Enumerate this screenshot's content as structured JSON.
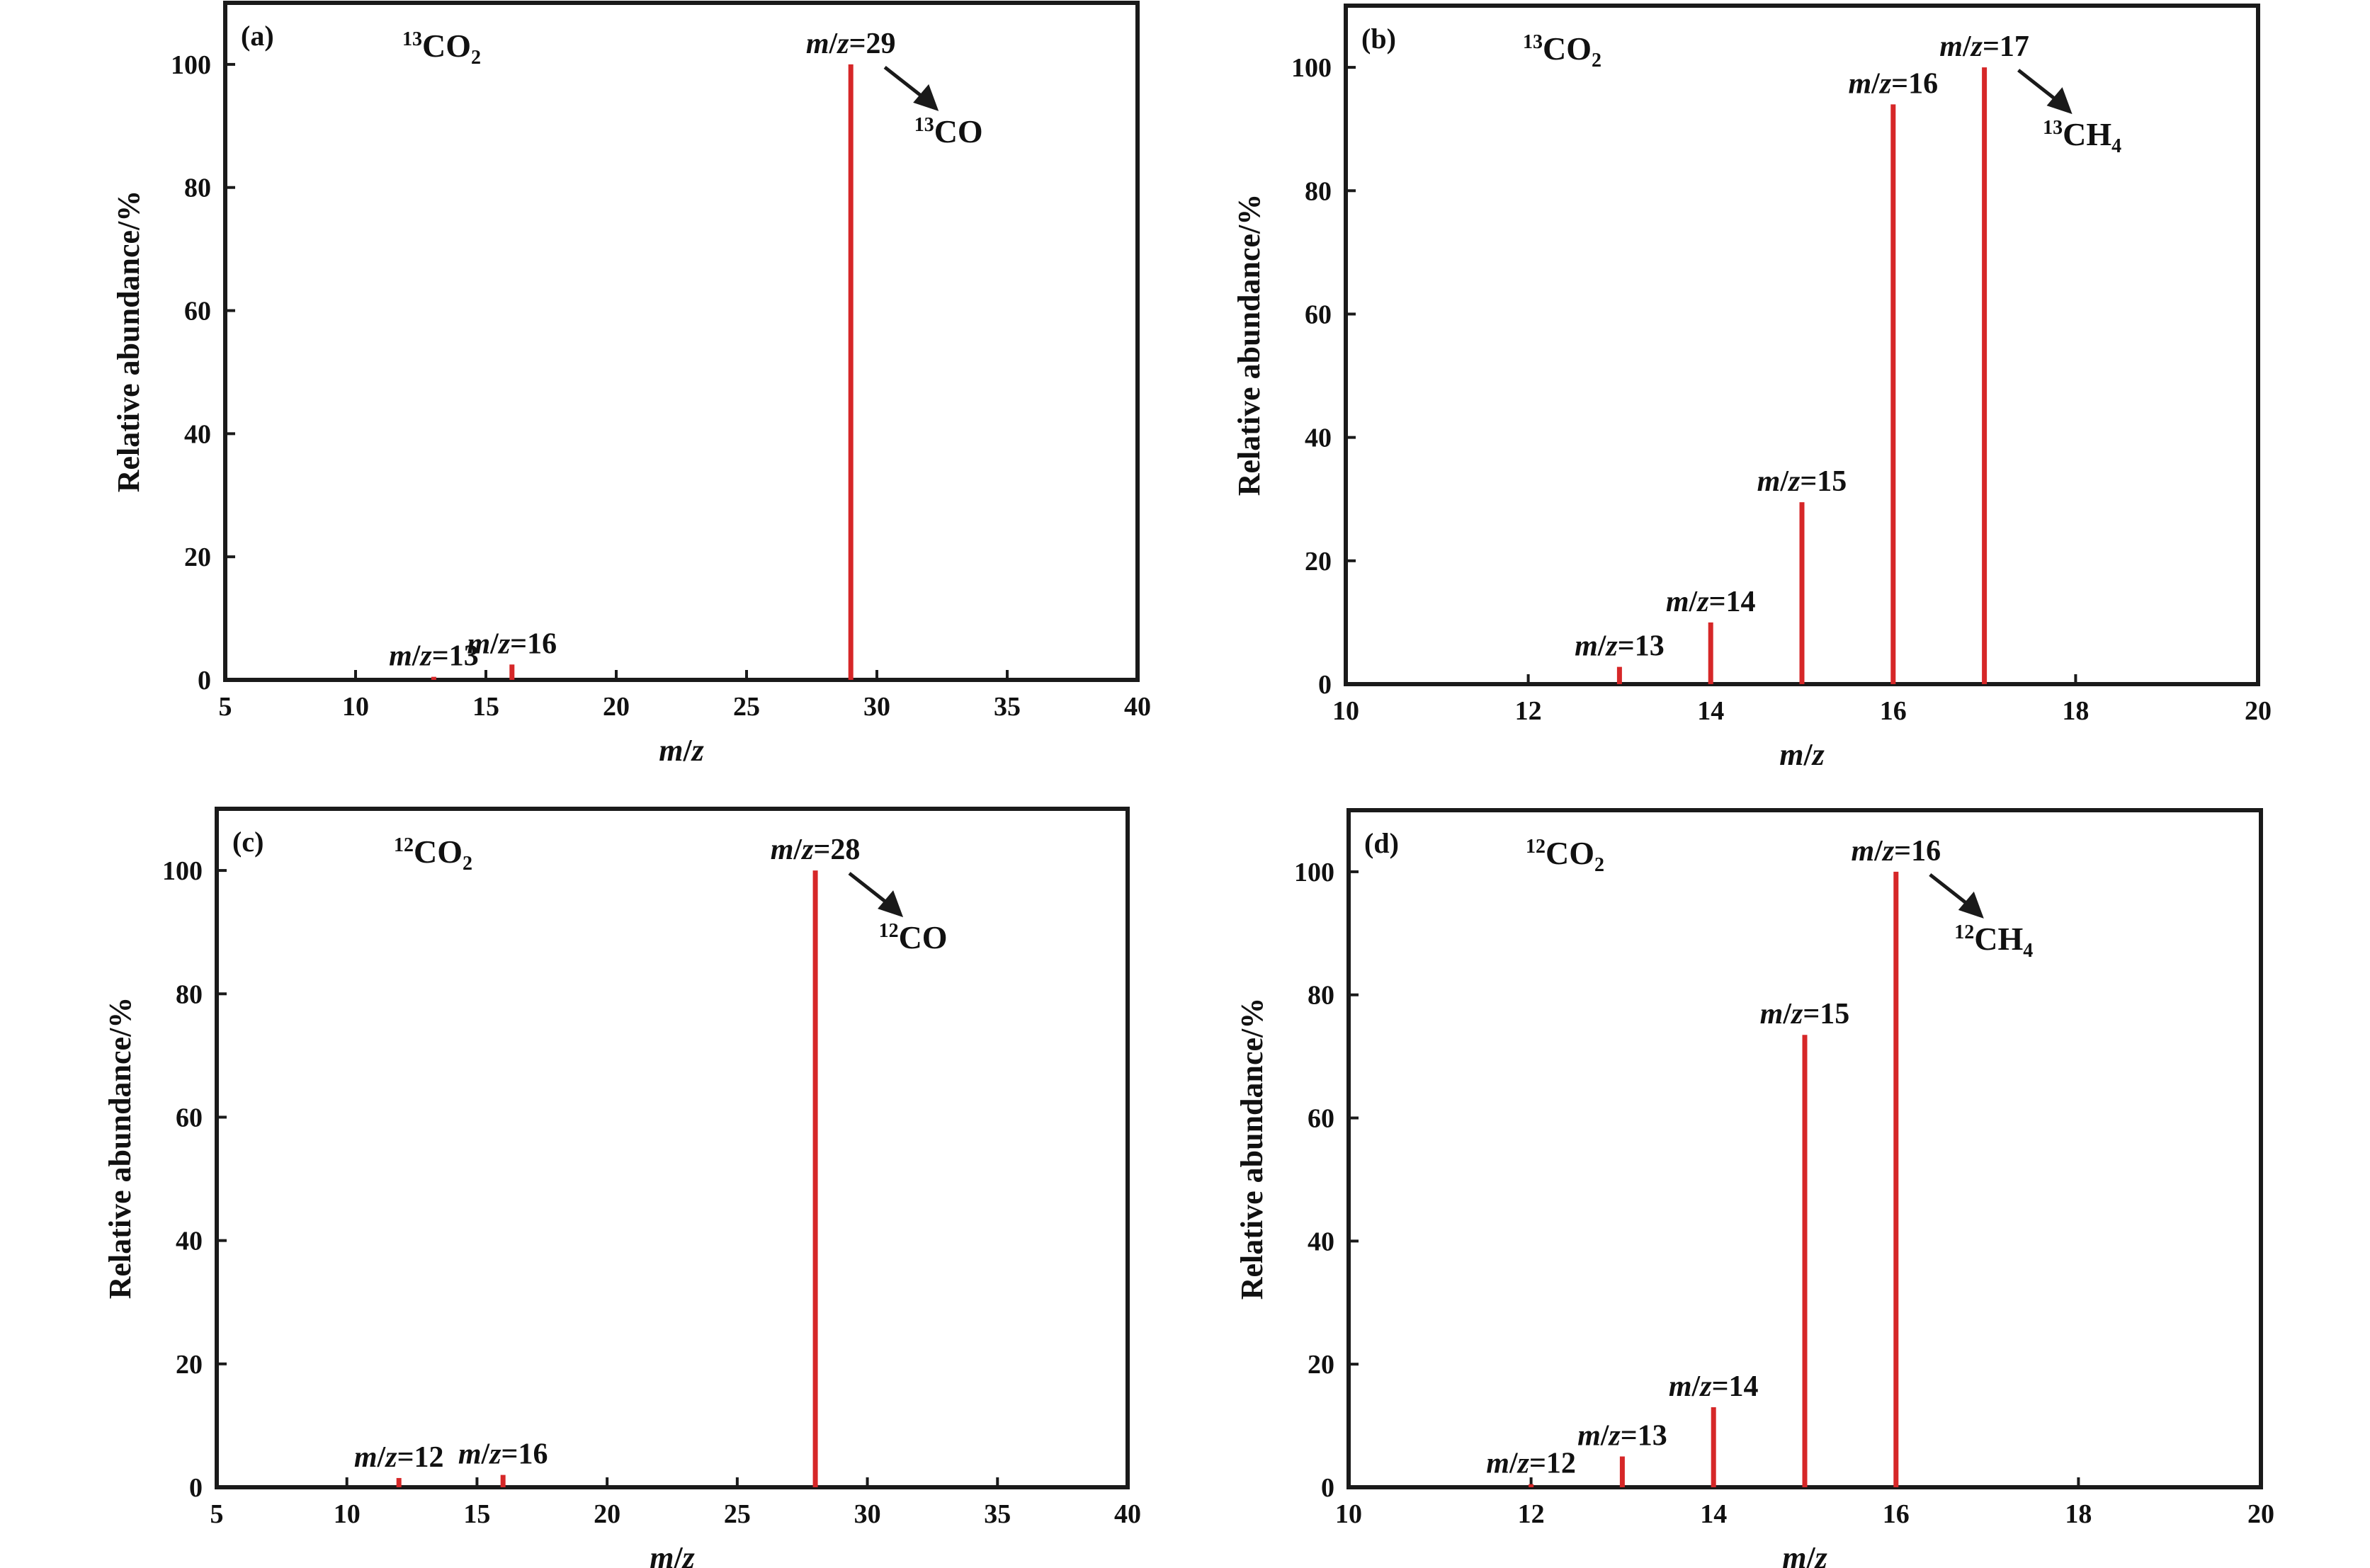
{
  "colors": {
    "stick": "#d62728",
    "axis": "#1a1a1a",
    "text": "#111111"
  },
  "chart_data": [
    {
      "type": "bar",
      "panel_label": "(a)",
      "label": {
        "sup": "13",
        "base": "CO",
        "sub": "2"
      },
      "xlabel": "m/z",
      "ylabel": "Relative abundance/%",
      "xlim": [
        5,
        40
      ],
      "ylim": [
        0,
        110
      ],
      "xticks": [
        "5",
        "10",
        "15",
        "20",
        "25",
        "30",
        "35",
        "40"
      ],
      "yticks": [
        "0",
        "20",
        "40",
        "60",
        "80",
        "100"
      ],
      "grid": false,
      "legend": "none",
      "x": [
        13,
        16,
        29
      ],
      "values": [
        0.5,
        2.5,
        100
      ],
      "annotations": [
        {
          "mz": "m/z=13",
          "x": 13,
          "y": 0.5
        },
        {
          "mz": "m/z=16",
          "x": 16,
          "y": 2.5
        },
        {
          "mz": "m/z=29",
          "x": 29,
          "y": 100,
          "product": {
            "sup": "13",
            "base": "CO",
            "sub": ""
          }
        }
      ]
    },
    {
      "type": "bar",
      "panel_label": "(b)",
      "label": {
        "sup": "13",
        "base": "CO",
        "sub": "2"
      },
      "xlabel": "m/z",
      "ylabel": "Relative abundance/%",
      "xlim": [
        10,
        20
      ],
      "ylim": [
        0,
        110
      ],
      "xticks": [
        "10",
        "12",
        "14",
        "16",
        "18",
        "20"
      ],
      "yticks": [
        "0",
        "20",
        "40",
        "60",
        "80",
        "100"
      ],
      "grid": false,
      "legend": "none",
      "x": [
        13,
        14,
        15,
        16,
        17
      ],
      "values": [
        2.8,
        10,
        29.5,
        94,
        100
      ],
      "annotations": [
        {
          "mz": "m/z=13",
          "x": 13,
          "y": 2.8
        },
        {
          "mz": "m/z=14",
          "x": 14,
          "y": 10
        },
        {
          "mz": "m/z=15",
          "x": 15,
          "y": 29.5
        },
        {
          "mz": "m/z=16",
          "x": 16,
          "y": 94
        },
        {
          "mz": "m/z=17",
          "x": 17,
          "y": 100,
          "product": {
            "sup": "13",
            "base": "CH",
            "sub": "4"
          }
        }
      ]
    },
    {
      "type": "bar",
      "panel_label": "(c)",
      "label": {
        "sup": "12",
        "base": "CO",
        "sub": "2"
      },
      "xlabel": "m/z",
      "ylabel": "Relative abundance/%",
      "xlim": [
        5,
        40
      ],
      "ylim": [
        0,
        110
      ],
      "xticks": [
        "5",
        "10",
        "15",
        "20",
        "25",
        "30",
        "35",
        "40"
      ],
      "yticks": [
        "0",
        "20",
        "40",
        "60",
        "80",
        "100"
      ],
      "grid": false,
      "legend": "none",
      "x": [
        12,
        16,
        28
      ],
      "values": [
        1.5,
        2,
        100
      ],
      "annotations": [
        {
          "mz": "m/z=12",
          "x": 12,
          "y": 1.5
        },
        {
          "mz": "m/z=16",
          "x": 16,
          "y": 2
        },
        {
          "mz": "m/z=28",
          "x": 28,
          "y": 100,
          "product": {
            "sup": "12",
            "base": "CO",
            "sub": ""
          }
        }
      ]
    },
    {
      "type": "bar",
      "panel_label": "(d)",
      "label": {
        "sup": "12",
        "base": "CO",
        "sub": "2"
      },
      "xlabel": "m/z",
      "ylabel": "Relative abundance/%",
      "xlim": [
        10,
        20
      ],
      "ylim": [
        0,
        110
      ],
      "xticks": [
        "10",
        "12",
        "14",
        "16",
        "18",
        "20"
      ],
      "yticks": [
        "0",
        "20",
        "40",
        "60",
        "80",
        "100"
      ],
      "grid": false,
      "legend": "none",
      "x": [
        12,
        13,
        14,
        15,
        16
      ],
      "values": [
        0.5,
        5,
        13,
        73.5,
        100
      ],
      "annotations": [
        {
          "mz": "m/z=12",
          "x": 12,
          "y": 0.5
        },
        {
          "mz": "m/z=13",
          "x": 13,
          "y": 5
        },
        {
          "mz": "m/z=14",
          "x": 14,
          "y": 13
        },
        {
          "mz": "m/z=15",
          "x": 15,
          "y": 73.5
        },
        {
          "mz": "m/z=16",
          "x": 16,
          "y": 100,
          "product": {
            "sup": "12",
            "base": "CH",
            "sub": "4"
          }
        }
      ]
    }
  ]
}
